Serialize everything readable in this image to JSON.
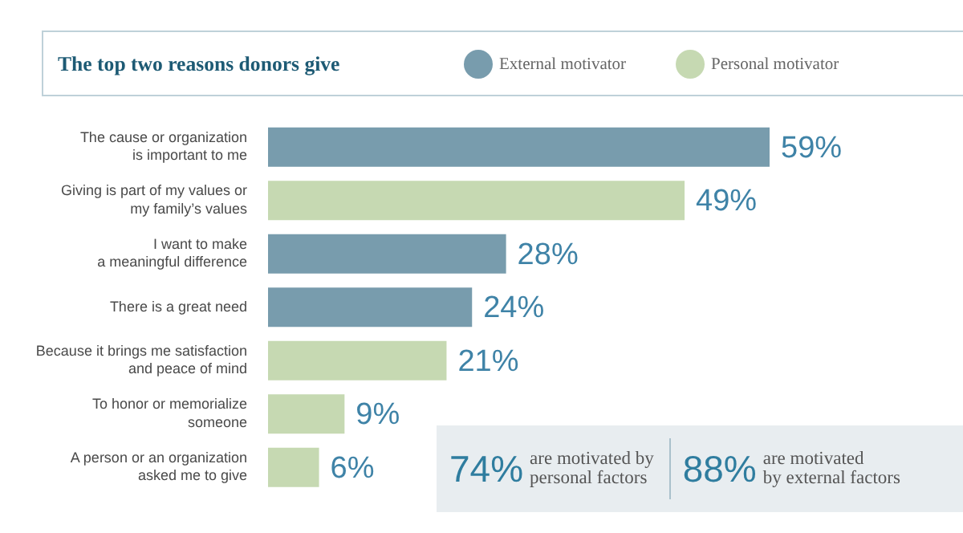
{
  "chart_data": {
    "type": "bar",
    "title": "The top two reasons donors give",
    "orientation": "horizontal",
    "categories": [
      "The cause or organization\nis important to me",
      "Giving is part of my values or\nmy family’s values",
      "I want to make\na meaningful difference",
      "There is a great need",
      "Because it brings me satisfaction\nand peace of mind",
      "To honor or memorialize\nsomeone",
      "A person or an organization\nasked me to give"
    ],
    "series": [
      {
        "name": "External motivator",
        "color": "#789cad",
        "values": [
          59,
          null,
          28,
          24,
          null,
          null,
          null
        ],
        "value_labels": [
          "59%",
          null,
          "28%",
          "24%",
          null,
          null,
          null
        ]
      },
      {
        "name": "Personal motivator",
        "color": "#c6d9b2",
        "values": [
          null,
          49,
          null,
          null,
          21,
          9,
          6
        ],
        "value_labels": [
          null,
          "49%",
          null,
          null,
          "21%",
          "9%",
          "6%"
        ]
      }
    ],
    "legend": "top",
    "tick_labels": "y",
    "annotations": [
      "74% are motivated by\npersonal factors",
      "88% are motivated\nby external factors"
    ]
  }
}
